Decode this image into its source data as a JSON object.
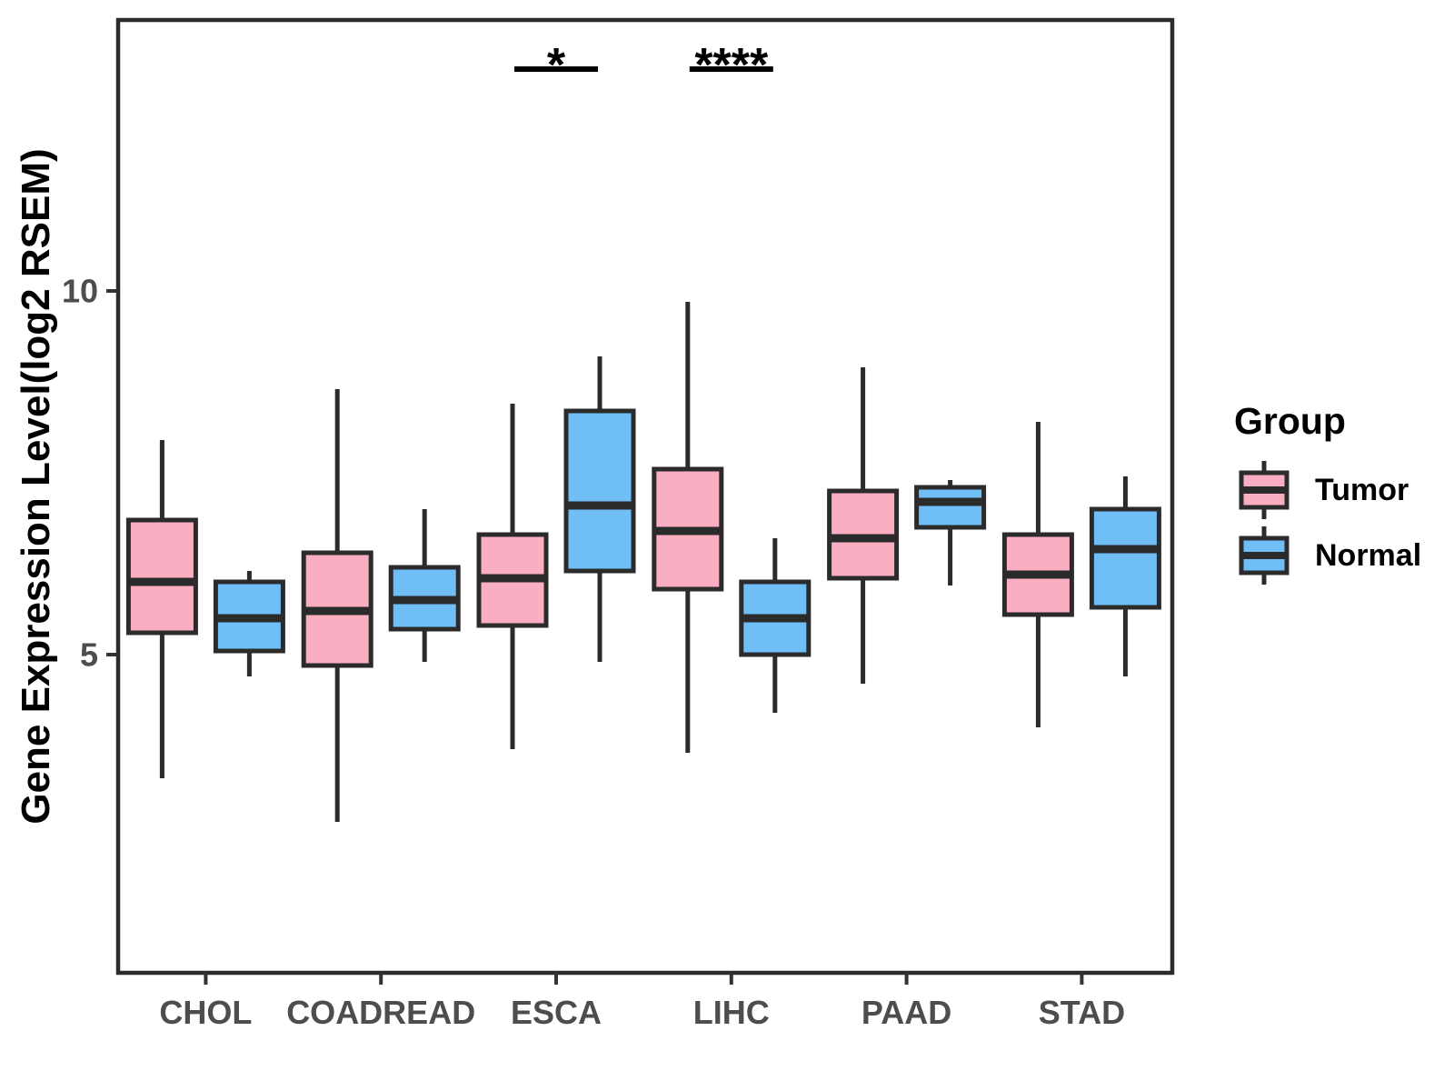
{
  "chart_data": {
    "type": "boxplot",
    "title": "",
    "ylabel": "Gene Expression Level(log2 RSEM)",
    "xlabel": "",
    "categories": [
      "CHOL",
      "COADREAD",
      "ESCA",
      "LIHC",
      "PAAD",
      "STAD"
    ],
    "y_ticks": [
      5,
      10
    ],
    "ylim": [
      0.6,
      13.7
    ],
    "grid": false,
    "legend_position": "right",
    "legend_title": "Group",
    "series": [
      {
        "name": "Tumor",
        "color": "#FAAEC1",
        "boxes": [
          {
            "category": "CHOL",
            "low": 3.3,
            "q1": 5.3,
            "median": 6.0,
            "q3": 6.85,
            "high": 7.95
          },
          {
            "category": "COADREAD",
            "low": 2.7,
            "q1": 4.85,
            "median": 5.6,
            "q3": 6.4,
            "high": 8.65
          },
          {
            "category": "ESCA",
            "low": 3.7,
            "q1": 5.4,
            "median": 6.05,
            "q3": 6.65,
            "high": 8.45
          },
          {
            "category": "LIHC",
            "low": 3.65,
            "q1": 5.9,
            "median": 6.7,
            "q3": 7.55,
            "high": 9.85
          },
          {
            "category": "PAAD",
            "low": 4.6,
            "q1": 6.05,
            "median": 6.6,
            "q3": 7.25,
            "high": 8.95
          },
          {
            "category": "STAD",
            "low": 4.0,
            "q1": 5.55,
            "median": 6.1,
            "q3": 6.65,
            "high": 8.2
          }
        ]
      },
      {
        "name": "Normal",
        "color": "#6FBEF5",
        "boxes": [
          {
            "category": "CHOL",
            "low": 4.7,
            "q1": 5.05,
            "median": 5.5,
            "q3": 6.0,
            "high": 6.15
          },
          {
            "category": "COADREAD",
            "low": 4.9,
            "q1": 5.35,
            "median": 5.75,
            "q3": 6.2,
            "high": 7.0
          },
          {
            "category": "ESCA",
            "low": 4.9,
            "q1": 6.15,
            "median": 7.05,
            "q3": 8.35,
            "high": 9.1
          },
          {
            "category": "LIHC",
            "low": 4.2,
            "q1": 5.0,
            "median": 5.5,
            "q3": 6.0,
            "high": 6.6
          },
          {
            "category": "PAAD",
            "low": 5.95,
            "q1": 6.75,
            "median": 7.1,
            "q3": 7.3,
            "high": 7.4
          },
          {
            "category": "STAD",
            "low": 4.7,
            "q1": 5.65,
            "median": 6.45,
            "q3": 7.0,
            "high": 7.45
          }
        ]
      }
    ],
    "annotations": [
      {
        "category": "ESCA",
        "label": "*"
      },
      {
        "category": "LIHC",
        "label": "****"
      }
    ],
    "box_border_color": "#2b2b2b",
    "axis_line_color": "#2b2b2b",
    "tick_color": "#333333",
    "axis_text_color": "#4d4d4d"
  }
}
